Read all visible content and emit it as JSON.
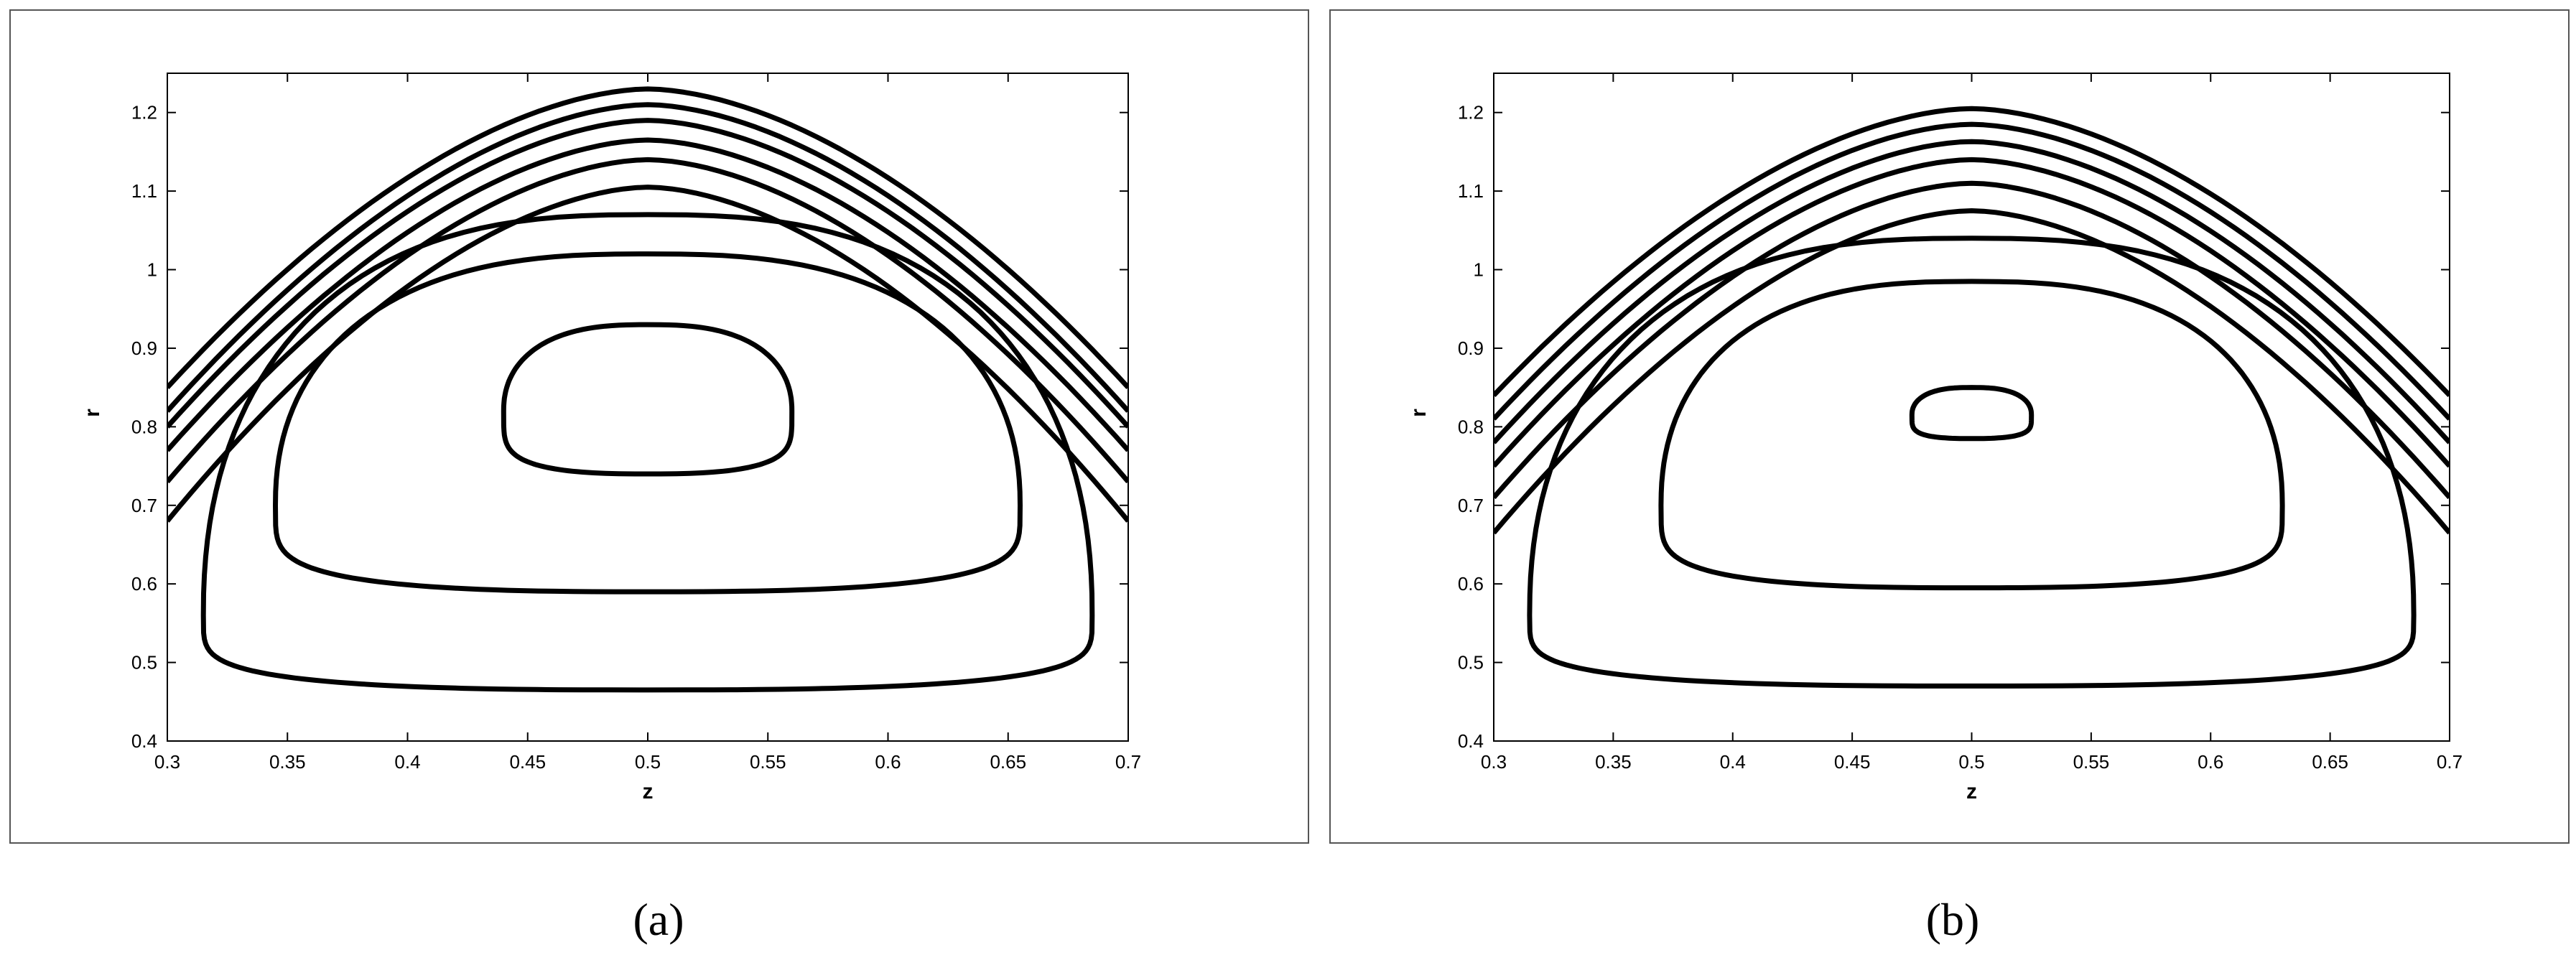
{
  "chart_data": [
    {
      "type": "contour",
      "caption": "(a)",
      "xlabel": "z",
      "ylabel": "r",
      "xlim": [
        0.3,
        0.7
      ],
      "ylim": [
        0.4,
        1.25
      ],
      "xticks": [
        "0.3",
        "0.35",
        "0.4",
        "0.45",
        "0.5",
        "0.55",
        "0.6",
        "0.65",
        "0.7"
      ],
      "yticks": [
        "0.4",
        "0.5",
        "0.6",
        "0.7",
        "0.8",
        "0.9",
        "1",
        "1.1",
        "1.2"
      ],
      "grid": false,
      "open_contours": [
        {
          "top": 1.23,
          "edge": 0.85
        },
        {
          "top": 1.21,
          "edge": 0.82
        },
        {
          "top": 1.19,
          "edge": 0.8
        },
        {
          "top": 1.165,
          "edge": 0.77
        },
        {
          "top": 1.14,
          "edge": 0.73
        },
        {
          "top": 1.105,
          "edge": 0.68
        }
      ],
      "closed_contours": [
        {
          "zmin": 0.315,
          "zmax": 0.685,
          "rmin": 0.465,
          "rmax": 1.07,
          "rmid": 0.56
        },
        {
          "zmin": 0.345,
          "zmax": 0.655,
          "rmin": 0.59,
          "rmax": 1.02,
          "rmid": 0.7
        },
        {
          "zmin": 0.44,
          "zmax": 0.56,
          "rmin": 0.74,
          "rmax": 0.93,
          "rmid": 0.82
        }
      ]
    },
    {
      "type": "contour",
      "caption": "(b)",
      "xlabel": "z",
      "ylabel": "r",
      "xlim": [
        0.3,
        0.7
      ],
      "ylim": [
        0.4,
        1.25
      ],
      "xticks": [
        "0.3",
        "0.35",
        "0.4",
        "0.45",
        "0.5",
        "0.55",
        "0.6",
        "0.65",
        "0.7"
      ],
      "yticks": [
        "0.4",
        "0.5",
        "0.6",
        "0.7",
        "0.8",
        "0.9",
        "1",
        "1.1",
        "1.2"
      ],
      "grid": false,
      "open_contours": [
        {
          "top": 1.205,
          "edge": 0.84
        },
        {
          "top": 1.185,
          "edge": 0.81
        },
        {
          "top": 1.163,
          "edge": 0.78
        },
        {
          "top": 1.14,
          "edge": 0.75
        },
        {
          "top": 1.11,
          "edge": 0.71
        },
        {
          "top": 1.075,
          "edge": 0.665
        }
      ],
      "closed_contours": [
        {
          "zmin": 0.315,
          "zmax": 0.685,
          "rmin": 0.47,
          "rmax": 1.04,
          "rmid": 0.56
        },
        {
          "zmin": 0.37,
          "zmax": 0.63,
          "rmin": 0.595,
          "rmax": 0.985,
          "rmid": 0.7
        },
        {
          "zmin": 0.475,
          "zmax": 0.525,
          "rmin": 0.785,
          "rmax": 0.85,
          "rmid": 0.815
        }
      ]
    }
  ]
}
